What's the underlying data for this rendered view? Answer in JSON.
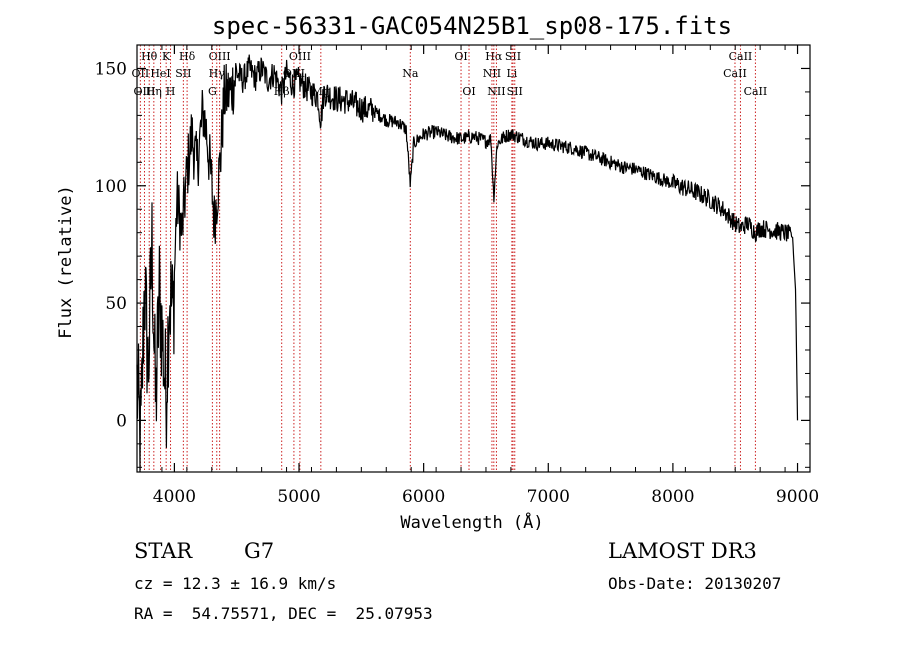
{
  "chart_data": {
    "type": "line",
    "title": "spec-56331-GAC054N25B1_sp08-175.fits",
    "xlabel": "Wavelength (Å)",
    "ylabel": "Flux (relative)",
    "xlim": [
      3700,
      9100
    ],
    "ylim": [
      -22,
      160
    ],
    "x_ticks": [
      4000,
      5000,
      6000,
      7000,
      8000,
      9000
    ],
    "y_ticks": [
      0,
      50,
      100,
      150
    ],
    "grid": false,
    "series": [
      {
        "name": "spectrum",
        "color": "#000000",
        "points": [
          [
            3700,
            15
          ],
          [
            3730,
            -10
          ],
          [
            3760,
            60
          ],
          [
            3790,
            20
          ],
          [
            3820,
            75
          ],
          [
            3850,
            5
          ],
          [
            3880,
            55
          ],
          [
            3910,
            30
          ],
          [
            3933,
            10
          ],
          [
            3960,
            55
          ],
          [
            3990,
            45
          ],
          [
            4020,
            95
          ],
          [
            4060,
            80
          ],
          [
            4100,
            105
          ],
          [
            4140,
            122
          ],
          [
            4180,
            108
          ],
          [
            4230,
            132
          ],
          [
            4260,
            122
          ],
          [
            4300,
            100
          ],
          [
            4320,
            85
          ],
          [
            4340,
            95
          ],
          [
            4370,
            112
          ],
          [
            4400,
            138
          ],
          [
            4450,
            140
          ],
          [
            4500,
            148
          ],
          [
            4550,
            145
          ],
          [
            4600,
            150
          ],
          [
            4650,
            146
          ],
          [
            4700,
            150
          ],
          [
            4750,
            145
          ],
          [
            4800,
            148
          ],
          [
            4861,
            140
          ],
          [
            4900,
            148
          ],
          [
            4950,
            143
          ],
          [
            5000,
            145
          ],
          [
            5050,
            142
          ],
          [
            5100,
            140
          ],
          [
            5150,
            138
          ],
          [
            5175,
            128
          ],
          [
            5200,
            140
          ],
          [
            5300,
            137
          ],
          [
            5400,
            136
          ],
          [
            5500,
            133
          ],
          [
            5600,
            132
          ],
          [
            5700,
            128
          ],
          [
            5800,
            127
          ],
          [
            5860,
            124
          ],
          [
            5893,
            100
          ],
          [
            5920,
            118
          ],
          [
            6000,
            122
          ],
          [
            6100,
            123
          ],
          [
            6200,
            121
          ],
          [
            6300,
            120
          ],
          [
            6400,
            121
          ],
          [
            6500,
            119
          ],
          [
            6540,
            120
          ],
          [
            6563,
            95
          ],
          [
            6590,
            118
          ],
          [
            6650,
            121
          ],
          [
            6700,
            122
          ],
          [
            6800,
            120
          ],
          [
            6900,
            118
          ],
          [
            7000,
            118
          ],
          [
            7100,
            117
          ],
          [
            7200,
            116
          ],
          [
            7300,
            114
          ],
          [
            7400,
            112
          ],
          [
            7500,
            110
          ],
          [
            7600,
            108
          ],
          [
            7700,
            107
          ],
          [
            7800,
            105
          ],
          [
            7900,
            103
          ],
          [
            8000,
            101
          ],
          [
            8100,
            99
          ],
          [
            8200,
            97
          ],
          [
            8300,
            94
          ],
          [
            8400,
            90
          ],
          [
            8498,
            84
          ],
          [
            8542,
            82
          ],
          [
            8600,
            84
          ],
          [
            8662,
            80
          ],
          [
            8700,
            82
          ],
          [
            8800,
            81
          ],
          [
            8900,
            80
          ],
          [
            8960,
            78
          ],
          [
            8985,
            55
          ],
          [
            9000,
            0
          ]
        ]
      }
    ],
    "spectral_lines": [
      {
        "label": "Hθ",
        "wavelength": 3798,
        "row": 1
      },
      {
        "label": "OII",
        "wavelength": 3727,
        "row": 2
      },
      {
        "label": "OIII",
        "wavelength": 3760,
        "row": 3
      },
      {
        "label": "K",
        "wavelength": 3934,
        "row": 1
      },
      {
        "label": "HeI",
        "wavelength": 3889,
        "row": 2
      },
      {
        "label": "Hη",
        "wavelength": 3835,
        "row": 3
      },
      {
        "label": "SII",
        "wavelength": 4072,
        "row": 2
      },
      {
        "label": "H",
        "wavelength": 3969,
        "row": 3
      },
      {
        "label": "Hδ",
        "wavelength": 4102,
        "row": 1
      },
      {
        "label": "OIII",
        "wavelength": 4363,
        "row": 1
      },
      {
        "label": "Hγ",
        "wavelength": 4340,
        "row": 2
      },
      {
        "label": "G",
        "wavelength": 4305,
        "row": 3
      },
      {
        "label": "OIII",
        "wavelength": 5007,
        "row": 1
      },
      {
        "label": "OIII",
        "wavelength": 4959,
        "row": 2
      },
      {
        "label": "Hβ",
        "wavelength": 4861,
        "row": 3
      },
      {
        "label": "Mg",
        "wavelength": 5175,
        "row": 3
      },
      {
        "label": "Na",
        "wavelength": 5893,
        "row": 2
      },
      {
        "label": "OI",
        "wavelength": 6300,
        "row": 1
      },
      {
        "label": "OI",
        "wavelength": 6364,
        "row": 3
      },
      {
        "label": "Hα",
        "wavelength": 6563,
        "row": 1
      },
      {
        "label": "NII",
        "wavelength": 6548,
        "row": 2
      },
      {
        "label": "NII",
        "wavelength": 6584,
        "row": 3
      },
      {
        "label": "SII",
        "wavelength": 6717,
        "row": 1
      },
      {
        "label": "Li",
        "wavelength": 6708,
        "row": 2
      },
      {
        "label": "SII",
        "wavelength": 6731,
        "row": 3
      },
      {
        "label": "CaII",
        "wavelength": 8542,
        "row": 1
      },
      {
        "label": "CaII",
        "wavelength": 8498,
        "row": 2
      },
      {
        "label": "CaII",
        "wavelength": 8662,
        "row": 3
      }
    ]
  },
  "info": {
    "object_class": "STAR",
    "subclass": "G7",
    "survey": "LAMOST DR3",
    "redshift_text": "cz = 12.3 ± 16.9 km/s",
    "obs_date_text": "Obs-Date: 20130207",
    "coords_text": "RA =  54.75571, DEC =  25.07953"
  }
}
